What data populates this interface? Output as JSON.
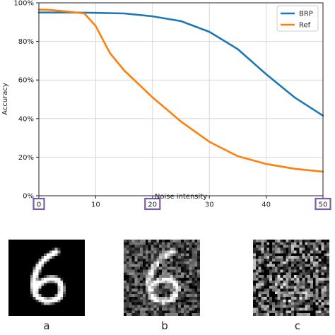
{
  "chart_data": {
    "type": "line",
    "title": "",
    "xlabel": "Noise intensity",
    "ylabel": "Accuracy",
    "xlim": [
      0,
      50
    ],
    "ylim": [
      0,
      100
    ],
    "x_ticks": [
      0,
      10,
      20,
      30,
      40,
      50
    ],
    "x_tick_labels": [
      "0",
      "10",
      "20",
      "30",
      "40",
      "50"
    ],
    "y_ticks": [
      0,
      20,
      40,
      60,
      80,
      100
    ],
    "y_tick_labels": [
      "0%",
      "20%",
      "40%",
      "60%",
      "80%",
      "100%"
    ],
    "highlighted_x_ticks": [
      0,
      20,
      50
    ],
    "grid": true,
    "legend_position": "top-right",
    "series": [
      {
        "name": "BRP",
        "color": "#1f77b4",
        "x": [
          0,
          5,
          10,
          15,
          20,
          25,
          30,
          35,
          40,
          45,
          50
        ],
        "y": [
          95,
          95,
          94.8,
          94.5,
          93,
          90.5,
          85,
          76,
          63,
          51,
          41.5
        ]
      },
      {
        "name": "Ref",
        "color": "#ff7f0e",
        "x": [
          0,
          2,
          5,
          8,
          10,
          12.5,
          15,
          20,
          25,
          30,
          35,
          40,
          45,
          50
        ],
        "y": [
          96.5,
          96.3,
          95.5,
          94.5,
          88,
          74,
          65,
          51,
          38.5,
          28,
          20.5,
          16.5,
          14,
          12.5
        ]
      }
    ]
  },
  "panels": [
    {
      "label": "a"
    },
    {
      "label": "b"
    },
    {
      "label": "c"
    }
  ],
  "colors": {
    "highlight_box": "#7b5ea7",
    "grid": "#d9d9d9"
  }
}
